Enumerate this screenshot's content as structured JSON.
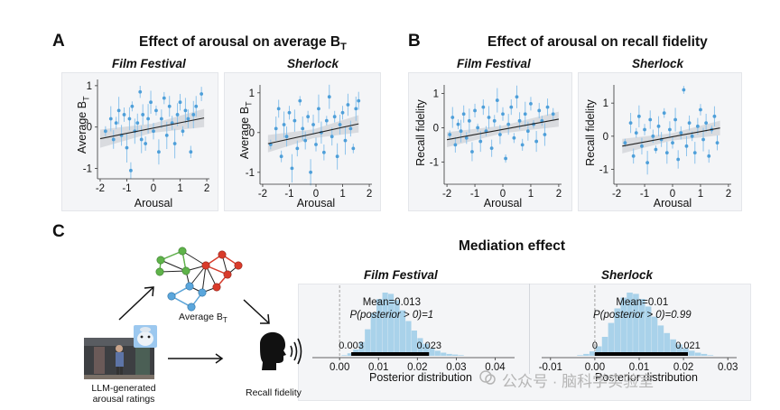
{
  "panel_letters": {
    "a": "A",
    "b": "B",
    "c": "C"
  },
  "titles": {
    "a": {
      "main": "Effect of arousal on average B",
      "sub": "T"
    },
    "b": "Effect of arousal on recall fidelity",
    "c": "Mediation effect"
  },
  "subtitles": {
    "film": "Film Festival",
    "sherlock": "Sherlock"
  },
  "axis_labels": {
    "arousal": "Arousal",
    "average_bt": {
      "main": "Average B",
      "sub": "T"
    },
    "recall": "Recall fidelity",
    "posterior": "Posterior distribution"
  },
  "diagram": {
    "llm_label_line1": "LLM-generated",
    "llm_label_line2": "arousal ratings",
    "avg_bt_label": {
      "main": "Average B",
      "sub": "T"
    },
    "recall_label": "Recall fidelity",
    "colors": {
      "green": "#5fb34a",
      "red": "#d93b2b",
      "blue": "#5aa6dc",
      "edge": "#222222"
    }
  },
  "watermark": "公众号 · 脑科学实验室",
  "chart_data": [
    {
      "id": "A-film",
      "type": "scatter",
      "title": "Film Festival",
      "xlabel": "Arousal",
      "ylabel": "Average BT",
      "xlim": [
        -2.1,
        2.1
      ],
      "ylim": [
        -1.25,
        1.15
      ],
      "xticks": [
        -2,
        -1,
        0,
        1,
        2
      ],
      "yticks": [
        -1,
        0,
        1
      ],
      "fit": {
        "x": [
          -2,
          1.9
        ],
        "y": [
          -0.28,
          0.22
        ]
      },
      "points": [
        [
          -1.8,
          -0.1
        ],
        [
          -1.6,
          0.2
        ],
        [
          -1.5,
          -0.3
        ],
        [
          -1.4,
          0.1
        ],
        [
          -1.3,
          0.4
        ],
        [
          -1.2,
          -0.2
        ],
        [
          -1.1,
          0.3
        ],
        [
          -1.0,
          -0.5
        ],
        [
          -0.9,
          0.2
        ],
        [
          -0.85,
          -1.05
        ],
        [
          -0.8,
          0.5
        ],
        [
          -0.7,
          -0.1
        ],
        [
          -0.6,
          0.1
        ],
        [
          -0.5,
          0.85
        ],
        [
          -0.45,
          -0.3
        ],
        [
          -0.4,
          0.3
        ],
        [
          -0.3,
          -0.4
        ],
        [
          -0.2,
          0.2
        ],
        [
          -0.1,
          0.6
        ],
        [
          0.0,
          -0.1
        ],
        [
          0.1,
          0.4
        ],
        [
          0.2,
          -0.6
        ],
        [
          0.3,
          0.2
        ],
        [
          0.4,
          0.7
        ],
        [
          0.5,
          -0.2
        ],
        [
          0.6,
          0.5
        ],
        [
          0.7,
          0.1
        ],
        [
          0.8,
          -0.4
        ],
        [
          0.9,
          0.3
        ],
        [
          1.0,
          0.6
        ],
        [
          1.1,
          -0.1
        ],
        [
          1.2,
          0.4
        ],
        [
          1.3,
          0.2
        ],
        [
          1.4,
          -0.6
        ],
        [
          1.5,
          0.3
        ],
        [
          1.6,
          0.5
        ],
        [
          1.8,
          0.8
        ]
      ]
    },
    {
      "id": "A-sherlock",
      "type": "scatter",
      "title": "Sherlock",
      "xlabel": "Arousal",
      "ylabel": "Average BT",
      "xlim": [
        -2.1,
        2.1
      ],
      "ylim": [
        -1.3,
        1.2
      ],
      "xticks": [
        -2,
        -1,
        0,
        1,
        2
      ],
      "yticks": [
        -1,
        0,
        1
      ],
      "fit": {
        "x": [
          -1.8,
          1.6
        ],
        "y": [
          -0.28,
          0.22
        ]
      },
      "points": [
        [
          -1.7,
          -0.3
        ],
        [
          -1.5,
          0.1
        ],
        [
          -1.4,
          0.6
        ],
        [
          -1.3,
          -0.6
        ],
        [
          -1.2,
          0.2
        ],
        [
          -1.1,
          -0.1
        ],
        [
          -1.0,
          0.5
        ],
        [
          -0.9,
          -0.9
        ],
        [
          -0.8,
          0.3
        ],
        [
          -0.7,
          -0.4
        ],
        [
          -0.6,
          0.8
        ],
        [
          -0.5,
          0.1
        ],
        [
          -0.4,
          -0.2
        ],
        [
          -0.3,
          0.4
        ],
        [
          -0.2,
          -1.0
        ],
        [
          -0.1,
          0.2
        ],
        [
          0.0,
          -0.3
        ],
        [
          0.1,
          0.6
        ],
        [
          0.2,
          0.0
        ],
        [
          0.3,
          -0.5
        ],
        [
          0.4,
          0.3
        ],
        [
          0.5,
          0.9
        ],
        [
          0.6,
          -0.1
        ],
        [
          0.7,
          0.4
        ],
        [
          0.8,
          -0.6
        ],
        [
          0.9,
          0.2
        ],
        [
          1.0,
          0.5
        ],
        [
          1.1,
          -0.2
        ],
        [
          1.2,
          0.7
        ],
        [
          1.3,
          0.1
        ],
        [
          1.4,
          -0.4
        ],
        [
          1.5,
          0.6
        ],
        [
          1.6,
          0.8
        ]
      ]
    },
    {
      "id": "B-film",
      "type": "scatter",
      "title": "Film Festival",
      "xlabel": "Arousal",
      "ylabel": "Recall fidelity",
      "xlim": [
        -2.1,
        2.1
      ],
      "ylim": [
        -1.65,
        1.25
      ],
      "xticks": [
        -2,
        -1,
        0,
        1,
        2
      ],
      "yticks": [
        -1,
        0,
        1
      ],
      "fit": {
        "x": [
          -2,
          2
        ],
        "y": [
          -0.35,
          0.25
        ]
      },
      "points": [
        [
          -1.9,
          -0.2
        ],
        [
          -1.8,
          0.3
        ],
        [
          -1.7,
          -0.5
        ],
        [
          -1.6,
          0.1
        ],
        [
          -1.5,
          -0.1
        ],
        [
          -1.4,
          0.4
        ],
        [
          -1.3,
          -0.3
        ],
        [
          -1.2,
          0.2
        ],
        [
          -1.1,
          -0.7
        ],
        [
          -1.0,
          0.5
        ],
        [
          -0.9,
          0.0
        ],
        [
          -0.8,
          -0.4
        ],
        [
          -0.7,
          0.6
        ],
        [
          -0.6,
          -0.1
        ],
        [
          -0.5,
          0.3
        ],
        [
          -0.4,
          -0.6
        ],
        [
          -0.3,
          0.2
        ],
        [
          -0.2,
          0.8
        ],
        [
          -0.1,
          -0.2
        ],
        [
          0.0,
          0.4
        ],
        [
          0.1,
          -0.9
        ],
        [
          0.2,
          0.1
        ],
        [
          0.3,
          0.6
        ],
        [
          0.4,
          -0.3
        ],
        [
          0.5,
          0.9
        ],
        [
          0.6,
          0.2
        ],
        [
          0.7,
          -0.5
        ],
        [
          0.8,
          0.4
        ],
        [
          0.9,
          -0.1
        ],
        [
          1.0,
          0.7
        ],
        [
          1.1,
          0.1
        ],
        [
          1.2,
          -0.4
        ],
        [
          1.3,
          0.5
        ],
        [
          1.4,
          0.2
        ],
        [
          1.5,
          -0.2
        ],
        [
          1.6,
          0.6
        ],
        [
          1.8,
          0.4
        ]
      ]
    },
    {
      "id": "B-sherlock",
      "type": "scatter",
      "title": "Sherlock",
      "xlabel": "Arousal",
      "ylabel": "Recall fidelity",
      "xlim": [
        -2.1,
        2.1
      ],
      "ylim": [
        -1.45,
        1.55
      ],
      "xticks": [
        -2,
        -1,
        0,
        1,
        2
      ],
      "yticks": [
        -1,
        0,
        1
      ],
      "fit": {
        "x": [
          -1.8,
          1.7
        ],
        "y": [
          -0.3,
          0.25
        ]
      },
      "points": [
        [
          -1.7,
          -0.2
        ],
        [
          -1.5,
          0.4
        ],
        [
          -1.4,
          -0.6
        ],
        [
          -1.3,
          0.1
        ],
        [
          -1.2,
          0.6
        ],
        [
          -1.1,
          -0.3
        ],
        [
          -1.0,
          0.2
        ],
        [
          -0.9,
          -0.8
        ],
        [
          -0.8,
          0.5
        ],
        [
          -0.7,
          0.0
        ],
        [
          -0.6,
          -0.4
        ],
        [
          -0.5,
          0.3
        ],
        [
          -0.4,
          -0.1
        ],
        [
          -0.3,
          0.7
        ],
        [
          -0.2,
          -0.5
        ],
        [
          -0.1,
          0.2
        ],
        [
          0.0,
          -0.2
        ],
        [
          0.1,
          0.5
        ],
        [
          0.2,
          -0.7
        ],
        [
          0.3,
          0.1
        ],
        [
          0.4,
          1.4
        ],
        [
          0.5,
          -0.3
        ],
        [
          0.6,
          0.4
        ],
        [
          0.7,
          0.0
        ],
        [
          0.8,
          -0.5
        ],
        [
          0.9,
          0.3
        ],
        [
          1.0,
          0.8
        ],
        [
          1.1,
          -0.1
        ],
        [
          1.2,
          0.4
        ],
        [
          1.3,
          -0.6
        ],
        [
          1.4,
          0.2
        ],
        [
          1.5,
          0.6
        ],
        [
          1.6,
          -0.2
        ]
      ]
    },
    {
      "id": "C-film",
      "type": "histogram",
      "title": "Film Festival",
      "xlabel": "Posterior distribution",
      "xlim": [
        -0.007,
        0.045
      ],
      "xticks": [
        0,
        0.01,
        0.02,
        0.03,
        0.04
      ],
      "xtick_labels": [
        "0.00",
        "0.01",
        "0.02",
        "0.03",
        "0.04"
      ],
      "bin_width": 0.0015,
      "bin_starts": [
        0.0005,
        0.002,
        0.0035,
        0.005,
        0.0065,
        0.008,
        0.0095,
        0.011,
        0.0125,
        0.014,
        0.0155,
        0.017,
        0.0185,
        0.02,
        0.0215,
        0.023,
        0.0245,
        0.026,
        0.0275,
        0.029,
        0.0305
      ],
      "densities": [
        0.01,
        0.04,
        0.1,
        0.22,
        0.42,
        0.68,
        0.9,
        1.0,
        0.98,
        0.88,
        0.72,
        0.55,
        0.4,
        0.28,
        0.19,
        0.12,
        0.08,
        0.05,
        0.03,
        0.02,
        0.01
      ],
      "mean_label": "Mean=0.013",
      "prob_label": "P(posterior > 0)=1",
      "ci": [
        0.003,
        0.023
      ],
      "ci_low_label": "0.003",
      "ci_high_label": "0.023",
      "ref_line": 0
    },
    {
      "id": "C-sherlock",
      "type": "histogram",
      "title": "Sherlock",
      "xlabel": "Posterior distribution",
      "xlim": [
        -0.012,
        0.032
      ],
      "xticks": [
        -0.01,
        0,
        0.01,
        0.02,
        0.03
      ],
      "xtick_labels": [
        "-0.01",
        "0.00",
        "0.01",
        "0.02",
        "0.03"
      ],
      "bin_width": 0.0014,
      "bin_starts": [
        -0.004,
        -0.0026,
        -0.0012,
        0.0002,
        0.0016,
        0.003,
        0.0044,
        0.0058,
        0.0072,
        0.0086,
        0.01,
        0.0114,
        0.0128,
        0.0142,
        0.0156,
        0.017,
        0.0184,
        0.0198,
        0.0212,
        0.0226,
        0.024,
        0.0254
      ],
      "densities": [
        0.01,
        0.03,
        0.07,
        0.15,
        0.3,
        0.52,
        0.75,
        0.92,
        1.0,
        0.98,
        0.9,
        0.78,
        0.62,
        0.48,
        0.36,
        0.26,
        0.18,
        0.12,
        0.08,
        0.05,
        0.03,
        0.01
      ],
      "mean_label": "Mean=0.01",
      "prob_label": "P(posterior > 0)=0.99",
      "ci": [
        0,
        0.021
      ],
      "ci_low_label": "0",
      "ci_high_label": "0.021",
      "ref_line": 0
    }
  ]
}
